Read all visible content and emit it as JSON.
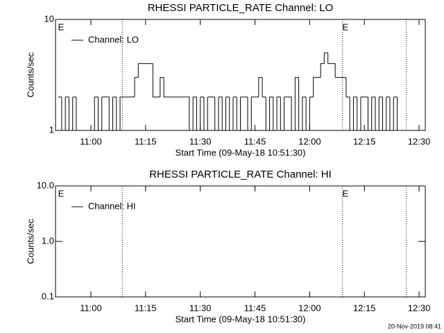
{
  "chart_data": [
    {
      "type": "line",
      "title": "RHESSI PARTICLE_RATE Channel: LO",
      "x_label": "Start Time (09-May-18 10:51:30)",
      "y_label": "Counts/sec",
      "log_y": true,
      "drawstyle": "steps",
      "legend": "upper left",
      "xlim": [
        650.3,
        751.7
      ],
      "ylim": [
        1,
        10
      ],
      "xticks": [
        {
          "value": 660,
          "label": "11:00"
        },
        {
          "value": 675,
          "label": "11:15"
        },
        {
          "value": 690,
          "label": "11:30"
        },
        {
          "value": 705,
          "label": "11:45"
        },
        {
          "value": 720,
          "label": "12:00"
        },
        {
          "value": 735,
          "label": "12:15"
        },
        {
          "value": 750,
          "label": "12:30"
        }
      ],
      "yticks": [
        1,
        10
      ],
      "vlines": [
        668.6,
        729,
        746.5
      ],
      "annotations": [
        {
          "text": "E",
          "x": 651
        },
        {
          "text": "E",
          "x": 729
        }
      ],
      "x": [
        651,
        652,
        653,
        654,
        655,
        656,
        657,
        658,
        659,
        660,
        661,
        662,
        663,
        664,
        665,
        666,
        667,
        668,
        669,
        670,
        671,
        672,
        673,
        674,
        675,
        676,
        677,
        678,
        679,
        680,
        681,
        682,
        683,
        684,
        685,
        686,
        687,
        688,
        689,
        690,
        691,
        692,
        693,
        694,
        695,
        696,
        697,
        698,
        699,
        700,
        701,
        702,
        703,
        704,
        705,
        706,
        707,
        708,
        709,
        710,
        711,
        712,
        713,
        714,
        715,
        716,
        717,
        718,
        719,
        720,
        721,
        722,
        723,
        724,
        725,
        726,
        727,
        728,
        729,
        730,
        731,
        732,
        733,
        734,
        735,
        736,
        737,
        738,
        739,
        740,
        741,
        742,
        743,
        744,
        745,
        746
      ],
      "series": [
        {
          "name": "Channel: LO",
          "color": "#000000",
          "values": [
            2,
            1,
            2,
            1,
            2,
            1,
            1,
            1,
            1,
            1,
            2,
            1,
            2,
            2,
            1,
            2,
            1,
            2,
            2,
            2,
            2,
            3,
            4,
            4,
            4,
            4,
            2,
            2,
            3,
            2,
            2,
            2,
            2,
            2,
            2,
            2,
            1,
            2,
            1,
            2,
            1,
            2,
            2,
            1,
            2,
            1,
            2,
            1,
            2,
            1,
            2,
            2,
            1,
            2,
            2,
            3,
            2,
            1,
            2,
            1,
            2,
            1,
            2,
            2,
            1,
            3,
            1,
            2,
            1,
            2,
            3,
            3,
            4,
            5,
            4,
            4,
            3,
            3,
            3,
            2,
            1,
            2,
            1,
            2,
            2,
            1,
            2,
            1,
            2,
            1,
            2,
            1,
            2,
            1,
            1,
            1
          ]
        }
      ]
    },
    {
      "type": "line",
      "title": "RHESSI PARTICLE_RATE Channel: HI",
      "x_label": "Start Time (09-May-18 10:51:30)",
      "y_label": "Counts/sec",
      "log_y": true,
      "drawstyle": "steps",
      "legend": "upper left",
      "xlim": [
        650.3,
        751.7
      ],
      "ylim": [
        0.1,
        10
      ],
      "xticks": [
        {
          "value": 660,
          "label": "11:00"
        },
        {
          "value": 675,
          "label": "11:15"
        },
        {
          "value": 690,
          "label": "11:30"
        },
        {
          "value": 705,
          "label": "11:45"
        },
        {
          "value": 720,
          "label": "12:00"
        },
        {
          "value": 735,
          "label": "12:15"
        },
        {
          "value": 750,
          "label": "12:30"
        }
      ],
      "yticks": [
        {
          "value": 0.1,
          "label": "0.1"
        },
        {
          "value": 1,
          "label": "1.0"
        },
        {
          "value": 10,
          "label": "10.0"
        }
      ],
      "vlines": [
        668.6,
        729,
        746.5
      ],
      "annotations": [
        {
          "text": "E",
          "x": 651
        },
        {
          "text": "E",
          "x": 729
        }
      ],
      "series": [
        {
          "name": "Channel: HI",
          "color": "#000000"
        }
      ]
    }
  ],
  "footer": "20-Nov-2019 08:41"
}
